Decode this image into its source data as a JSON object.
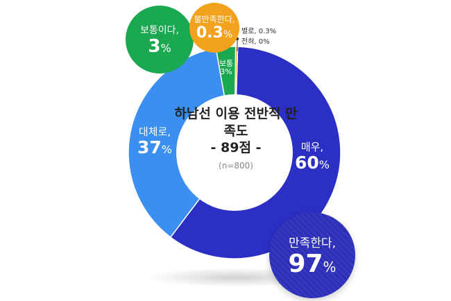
{
  "chart_data": {
    "type": "pie",
    "title": "하남선 이용 전반적 만족도",
    "subtitle": "- 89점 -",
    "sample": "(n=800)",
    "slices": [
      {
        "label": "매우,",
        "value": 60,
        "color": "#2b2fc4"
      },
      {
        "label": "대체로,",
        "value": 37,
        "color": "#3a8ff0"
      },
      {
        "label": "보통이다,",
        "value": 3,
        "color": "#1aa850"
      },
      {
        "label": "별로,",
        "value": 0.3,
        "color": "#f2a21c"
      },
      {
        "label": "전혀,",
        "value": 0,
        "color": "#a0a0a0"
      }
    ]
  },
  "labels": {
    "very": {
      "text": "매우,",
      "value": "60",
      "unit": "%"
    },
    "mostly": {
      "text": "대체로,",
      "value": "37",
      "unit": "%"
    },
    "neutral_inline": {
      "text": "보통",
      "value": "3%"
    }
  },
  "bubbles": {
    "satisfied": {
      "text": "만족한다,",
      "value": "97",
      "unit": "%"
    },
    "neutral": {
      "text": "보통이다,",
      "value": "3",
      "unit": "%"
    },
    "dissatisfied": {
      "text": "불만족한다,",
      "value": "0.3",
      "unit": "%"
    }
  },
  "notes": {
    "rarely": "별로, 0.3%",
    "never": "전혀, 0%"
  }
}
